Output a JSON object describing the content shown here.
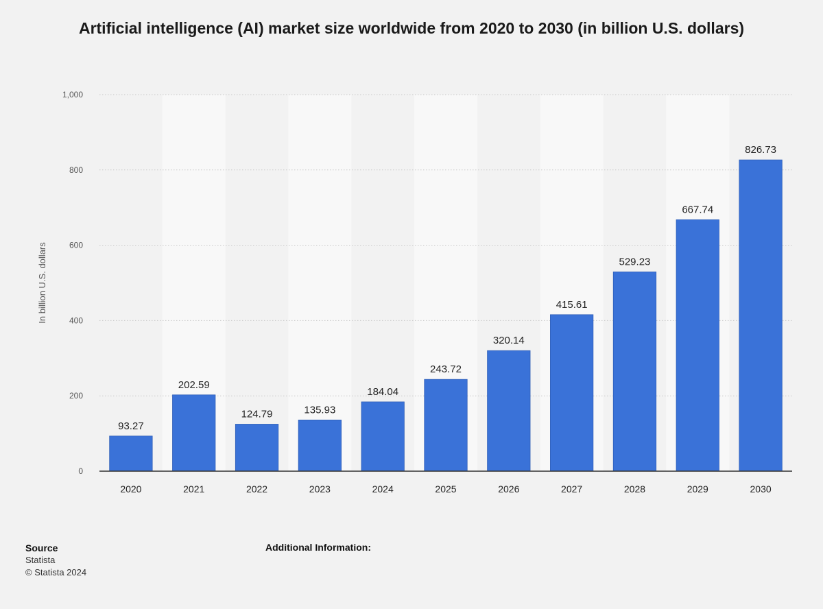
{
  "title": "Artificial intelligence (AI) market size worldwide from 2020 to 2030 (in billion U.S. dollars)",
  "chart_data": {
    "type": "bar",
    "title": "Artificial intelligence (AI) market size worldwide from 2020 to 2030 (in billion U.S. dollars)",
    "ylabel": "In billion U.S. dollars",
    "xlabel": "",
    "categories": [
      "2020",
      "2021",
      "2022",
      "2023",
      "2024",
      "2025",
      "2026",
      "2027",
      "2028",
      "2029",
      "2030"
    ],
    "values": [
      93.27,
      202.59,
      124.79,
      135.93,
      184.04,
      243.72,
      320.14,
      415.61,
      529.23,
      667.74,
      826.73
    ],
    "value_labels": [
      "93.27",
      "202.59",
      "124.79",
      "135.93",
      "184.04",
      "243.72",
      "320.14",
      "415.61",
      "529.23",
      "667.74",
      "826.73"
    ],
    "ylim": [
      0,
      1000
    ],
    "yticks": [
      0,
      200,
      400,
      600,
      800,
      1000
    ],
    "ytick_labels": [
      "0",
      "200",
      "400",
      "600",
      "800",
      "1,000"
    ],
    "grid": true,
    "bar_color": "#3a72d8"
  },
  "footer": {
    "source_heading": "Source",
    "source_name": "Statista",
    "copyright": "© Statista 2024",
    "additional_info": "Additional Information:"
  }
}
